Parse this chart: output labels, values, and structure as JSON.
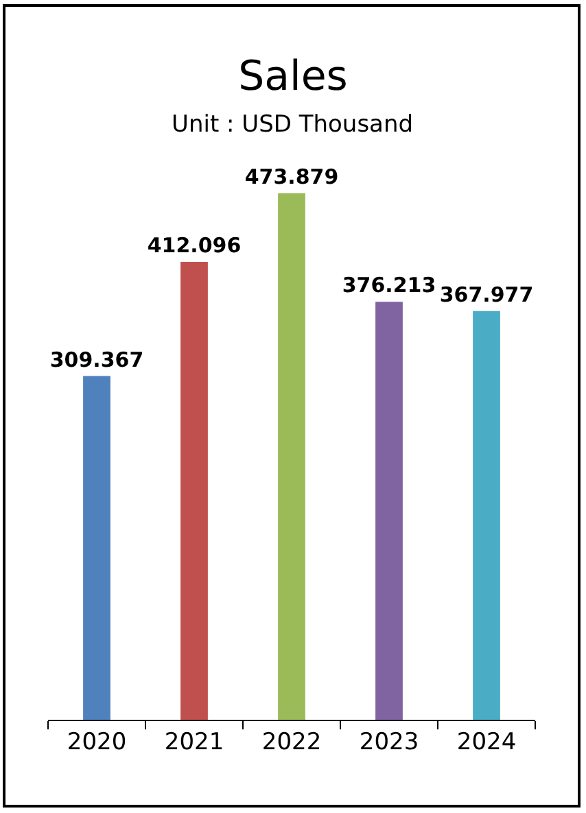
{
  "chart_data": {
    "type": "bar",
    "title": "Sales",
    "subtitle": "Unit : USD Thousand",
    "categories": [
      "2020",
      "2021",
      "2022",
      "2023",
      "2024"
    ],
    "values": [
      309.367,
      412.096,
      473.879,
      376.213,
      367.977
    ],
    "colors": [
      "#4f81bd",
      "#c0504d",
      "#9bbb59",
      "#8064a2",
      "#4bacc6"
    ],
    "data_labels": true,
    "legend": false
  }
}
